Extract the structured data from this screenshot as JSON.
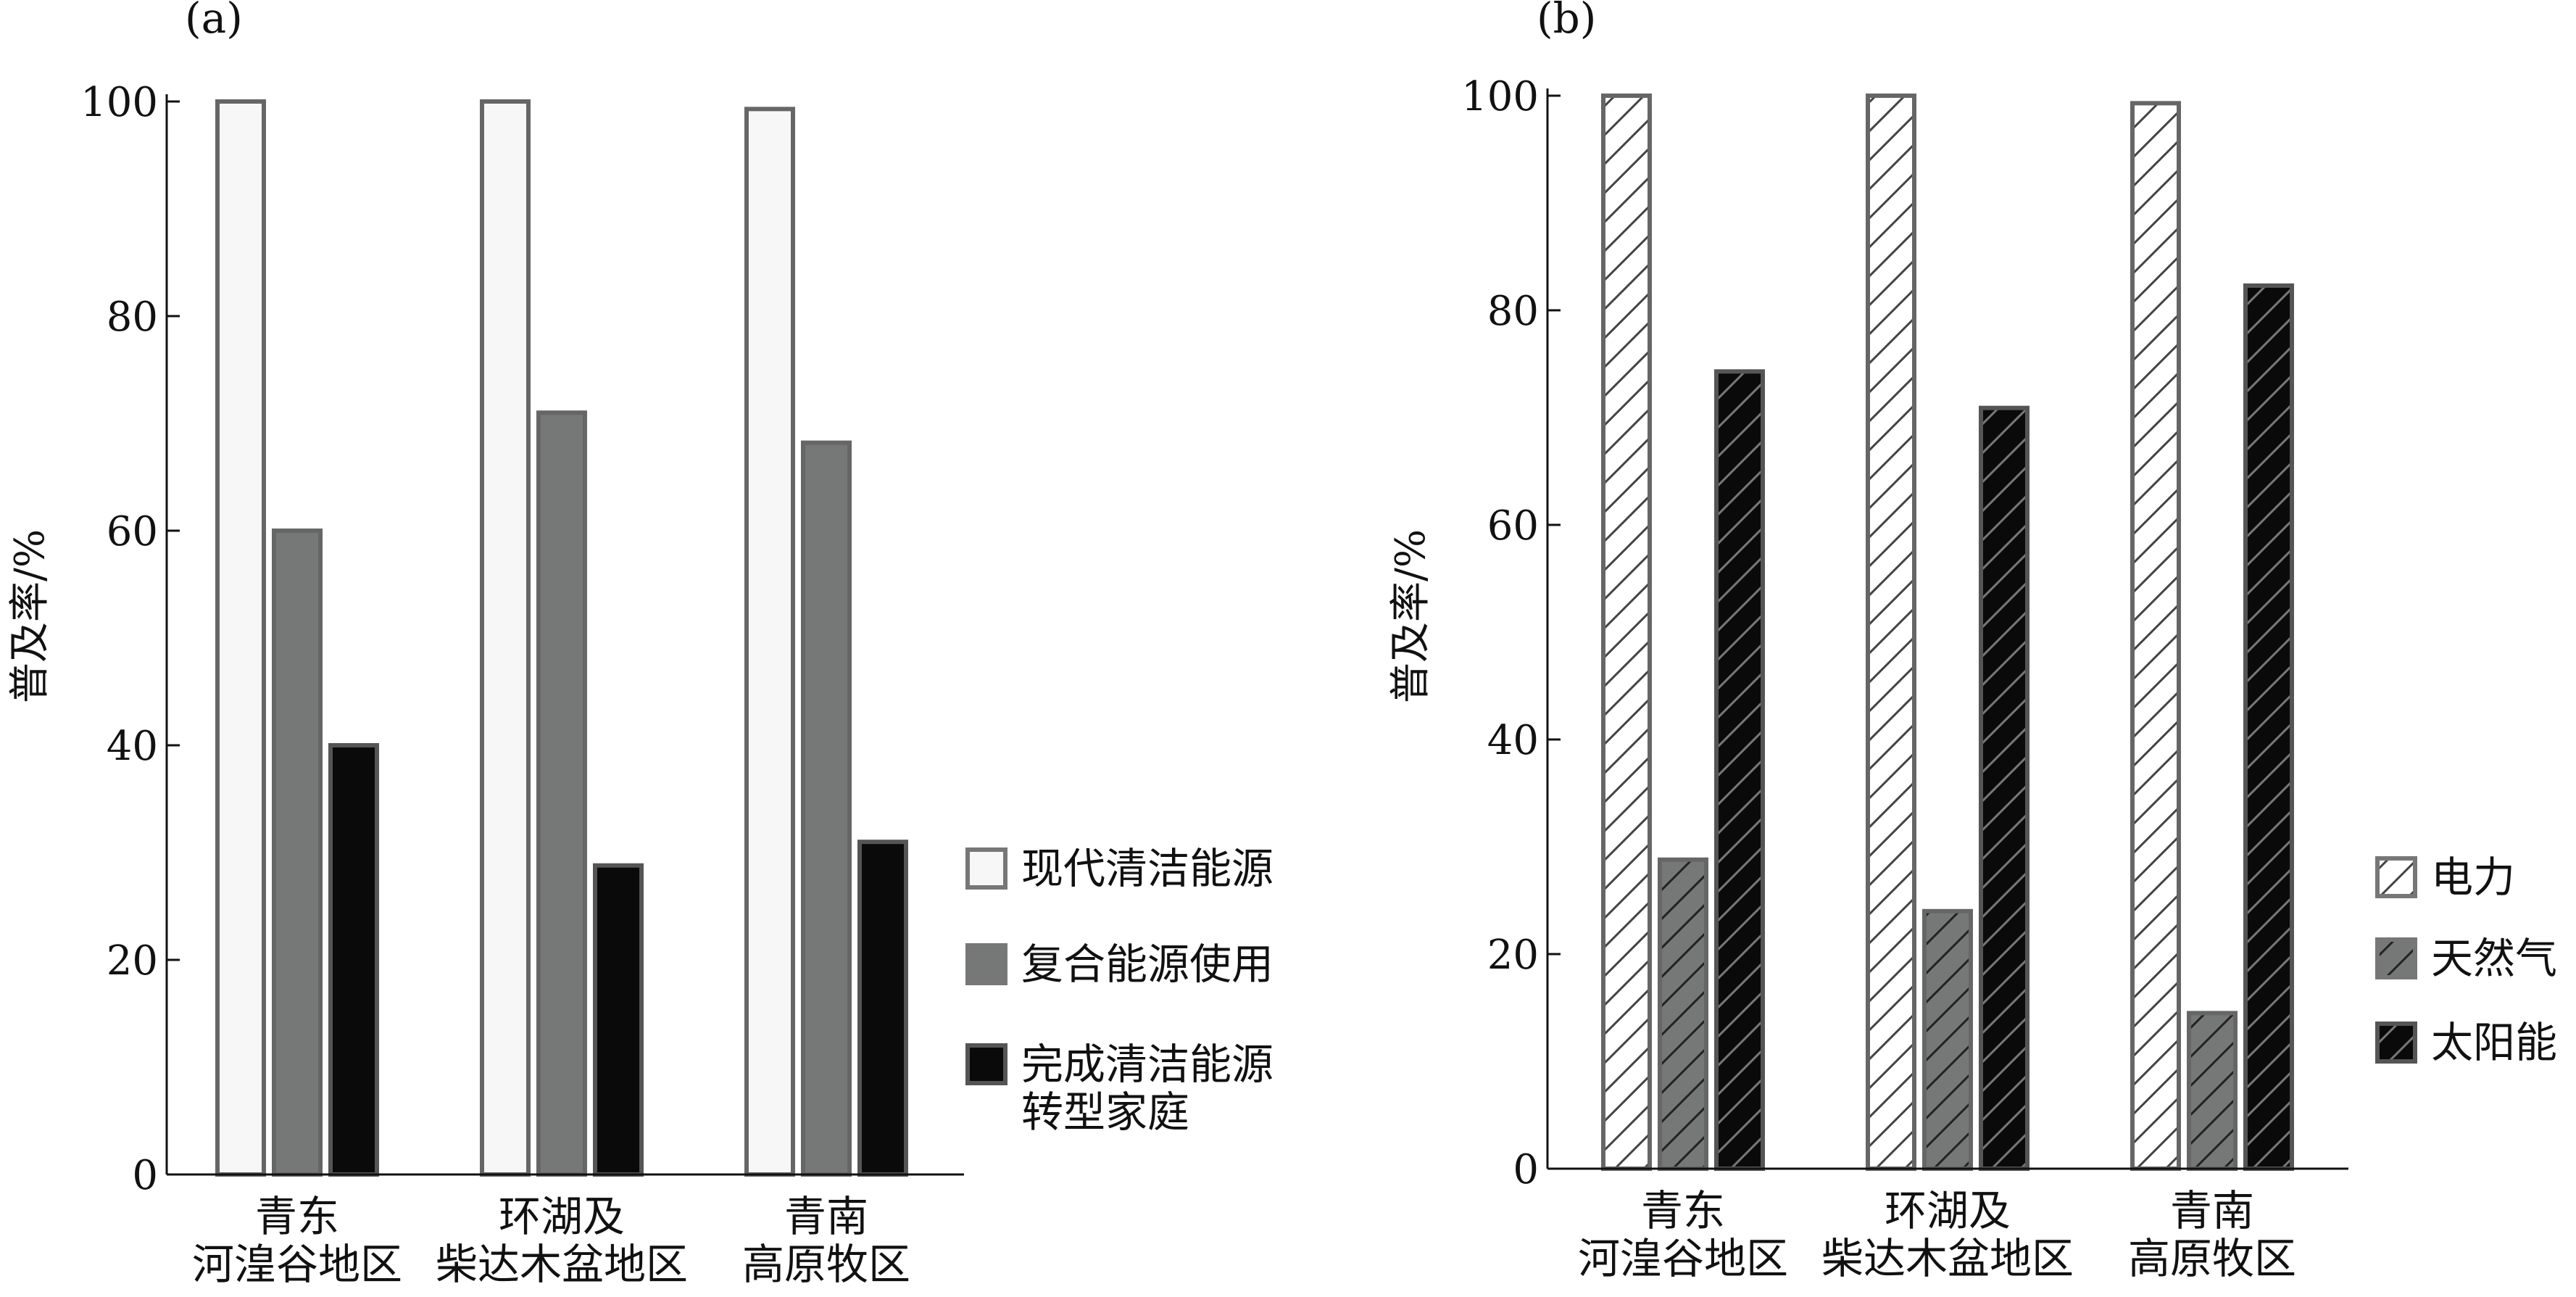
{
  "chart_data": [
    {
      "panel": "(a)",
      "type": "bar",
      "ylabel": "普及率/%",
      "ylim": [
        0,
        100
      ],
      "yticks": [
        "0",
        "20",
        "40",
        "60",
        "80",
        "100"
      ],
      "categories": [
        [
          "青东",
          "河湟谷地区"
        ],
        [
          "环湖及",
          "柴达木盆地区"
        ],
        [
          "青南",
          "高原牧区"
        ]
      ],
      "series": [
        {
          "name": "现代清洁能源",
          "values": [
            100,
            100,
            99.3
          ],
          "fill": "#f7f7f7",
          "pattern": "none"
        },
        {
          "name": "复合能源使用",
          "values": [
            60,
            71,
            68.2
          ],
          "fill": "#767878",
          "pattern": "none"
        },
        {
          "name": [
            "完成清洁能源",
            "转型家庭"
          ],
          "values": [
            40,
            28.8,
            31
          ],
          "fill": "#0a0a0a",
          "pattern": "none"
        }
      ],
      "legend_position": "right"
    },
    {
      "panel": "(b)",
      "type": "bar",
      "ylabel": "普及率/%",
      "ylim": [
        0,
        100
      ],
      "yticks": [
        "0",
        "20",
        "40",
        "60",
        "80",
        "100"
      ],
      "categories": [
        [
          "青东",
          "河湟谷地区"
        ],
        [
          "环湖及",
          "柴达木盆地区"
        ],
        [
          "青南",
          "高原牧区"
        ]
      ],
      "series": [
        {
          "name": "电力",
          "values": [
            100,
            100,
            99.3
          ],
          "fill": "#ffffff",
          "pattern": "hatch"
        },
        {
          "name": "天然气",
          "values": [
            28.8,
            24,
            14.5
          ],
          "fill": "#767878",
          "pattern": "hatch"
        },
        {
          "name": "太阳能",
          "values": [
            74.3,
            70.9,
            82.3
          ],
          "fill": "#0a0a0a",
          "pattern": "hatch"
        }
      ],
      "legend_position": "right"
    }
  ]
}
